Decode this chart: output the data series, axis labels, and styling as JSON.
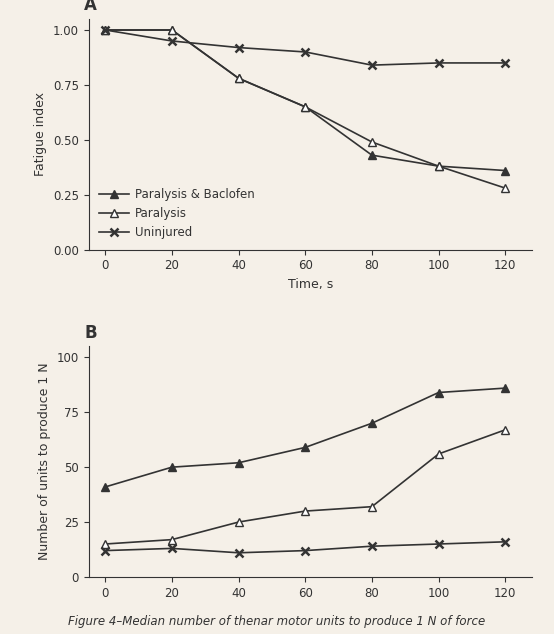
{
  "background_color": "#f5f0e8",
  "panel_bg": "#f5f0e8",
  "time_x": [
    0,
    20,
    40,
    60,
    80,
    100,
    120
  ],
  "panel_A": {
    "title": "A",
    "ylabel": "Fatigue index",
    "xlabel": "Time, s",
    "ylim": [
      0.0,
      1.05
    ],
    "yticks": [
      0.0,
      0.25,
      0.5,
      0.75,
      1.0
    ],
    "paralysis_baclofen": [
      1.0,
      1.0,
      0.78,
      0.65,
      0.43,
      0.38,
      0.36
    ],
    "paralysis": [
      1.0,
      1.0,
      0.78,
      0.65,
      0.49,
      0.38,
      0.28
    ],
    "uninjured": [
      1.0,
      0.95,
      0.92,
      0.9,
      0.84,
      0.85,
      0.85
    ]
  },
  "panel_B": {
    "title": "B",
    "ylabel": "Number of units to produce 1 N",
    "xlabel": "",
    "ylim": [
      0,
      105
    ],
    "yticks": [
      0,
      25,
      50,
      75,
      100
    ],
    "paralysis_baclofen": [
      41,
      50,
      52,
      59,
      70,
      84,
      86
    ],
    "paralysis": [
      15,
      17,
      25,
      30,
      32,
      56,
      67
    ],
    "uninjured": [
      12,
      13,
      11,
      12,
      14,
      15,
      16
    ]
  },
  "line_color": "#333333",
  "caption": "Figure 4–Median number of thenar motor units to produce 1 N of force"
}
